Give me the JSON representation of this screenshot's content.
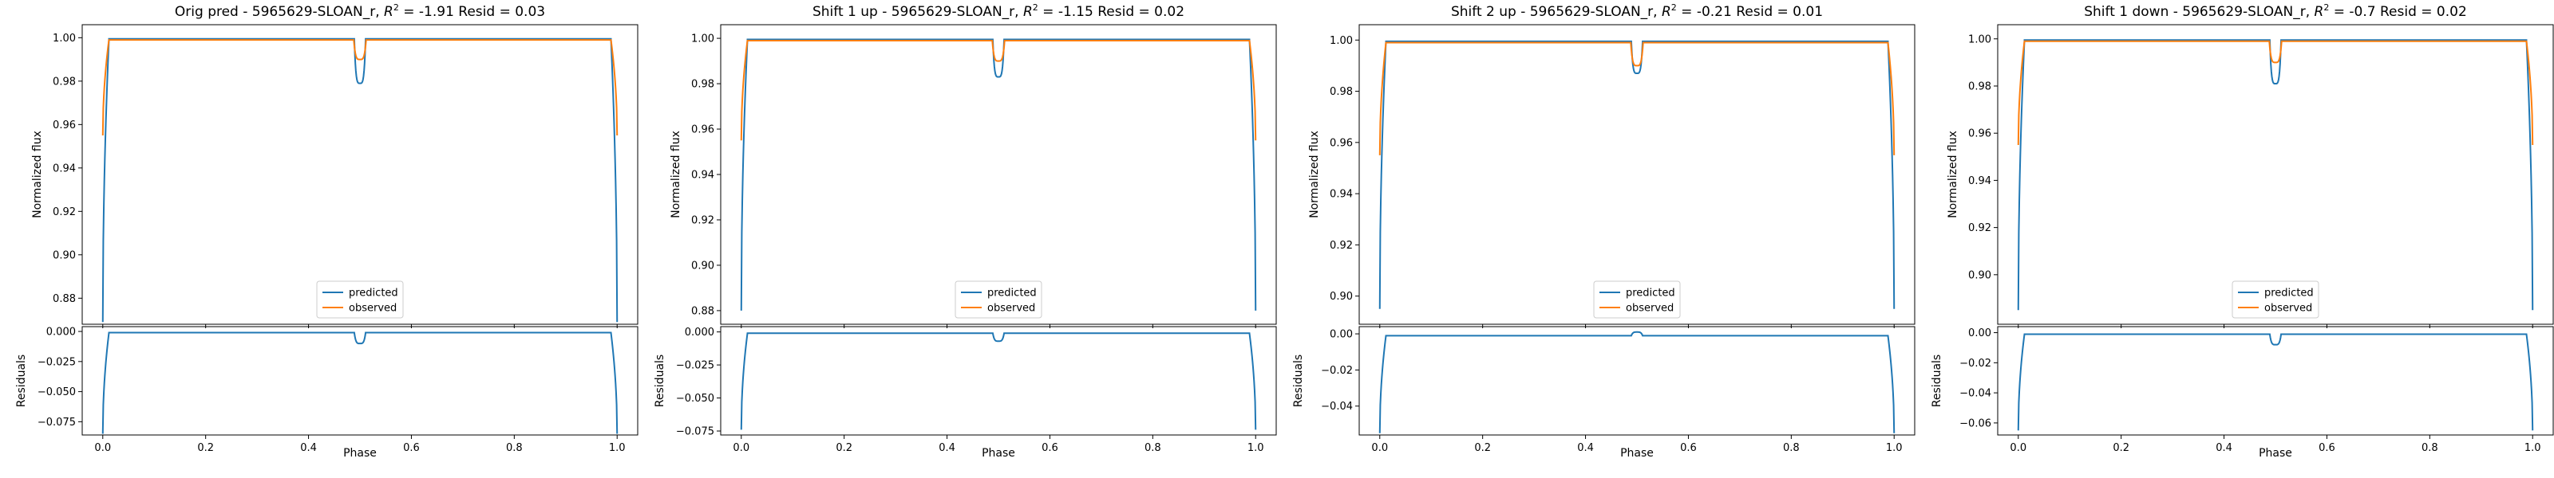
{
  "chart_data": [
    {
      "type": "line",
      "title": "Orig pred - 5965629-SLOAN_r, $R^2$ = -1.91 Resid = 0.03",
      "title_plain": "Orig pred - 5965629-SLOAN_r, ",
      "title_r2_value": "-1.91",
      "title_resid": "Resid = 0.03",
      "xlabel": "Phase",
      "ylabel": "Normalized flux",
      "resid_ylabel": "Residuals",
      "xlim": [
        -0.04,
        1.04
      ],
      "ylim": [
        0.868,
        1.006
      ],
      "yticks": [
        0.88,
        0.9,
        0.92,
        0.94,
        0.96,
        0.98,
        1.0
      ],
      "ytick_labels": [
        "0.88",
        "0.90",
        "0.92",
        "0.94",
        "0.96",
        "0.98",
        "1.00"
      ],
      "xticks": [
        0.0,
        0.2,
        0.4,
        0.6,
        0.8,
        1.0
      ],
      "xtick_labels": [
        "0.0",
        "0.2",
        "0.4",
        "0.6",
        "0.8",
        "1.0"
      ],
      "resid_ylim": [
        -0.086,
        0.004
      ],
      "resid_yticks": [
        0.0,
        -0.025,
        -0.05,
        -0.075
      ],
      "resid_ytick_labels": [
        "0.000",
        "−0.025",
        "−0.050",
        "−0.075"
      ],
      "legend_position": "lower center",
      "series": [
        {
          "name": "predicted",
          "color": "#1f77b4",
          "edge_min": 0.869,
          "plateau": 0.9995,
          "dip_min": 0.979
        },
        {
          "name": "observed",
          "color": "#ff7f0e",
          "edge_min": 0.955,
          "plateau": 0.999,
          "dip_min": 0.99
        }
      ],
      "residuals": {
        "color": "#1f77b4",
        "edge_min": -0.085,
        "plateau": -0.001,
        "dip_min": -0.01
      }
    },
    {
      "type": "line",
      "title": "Shift 1 up - 5965629-SLOAN_r, $R^2$ = -1.15 Resid = 0.02",
      "title_plain": "Shift 1 up - 5965629-SLOAN_r, ",
      "title_r2_value": "-1.15",
      "title_resid": "Resid = 0.02",
      "xlabel": "Phase",
      "ylabel": "Normalized flux",
      "resid_ylabel": "Residuals",
      "xlim": [
        -0.04,
        1.04
      ],
      "ylim": [
        0.874,
        1.006
      ],
      "yticks": [
        0.88,
        0.9,
        0.92,
        0.94,
        0.96,
        0.98,
        1.0
      ],
      "ytick_labels": [
        "0.88",
        "0.90",
        "0.92",
        "0.94",
        "0.96",
        "0.98",
        "1.00"
      ],
      "xticks": [
        0.0,
        0.2,
        0.4,
        0.6,
        0.8,
        1.0
      ],
      "xtick_labels": [
        "0.0",
        "0.2",
        "0.4",
        "0.6",
        "0.8",
        "1.0"
      ],
      "resid_ylim": [
        -0.078,
        0.004
      ],
      "resid_yticks": [
        0.0,
        -0.025,
        -0.05,
        -0.075
      ],
      "resid_ytick_labels": [
        "0.000",
        "−0.025",
        "−0.050",
        "−0.075"
      ],
      "legend_position": "lower center",
      "series": [
        {
          "name": "predicted",
          "color": "#1f77b4",
          "edge_min": 0.88,
          "plateau": 0.9995,
          "dip_min": 0.983
        },
        {
          "name": "observed",
          "color": "#ff7f0e",
          "edge_min": 0.955,
          "plateau": 0.999,
          "dip_min": 0.99
        }
      ],
      "residuals": {
        "color": "#1f77b4",
        "edge_min": -0.074,
        "plateau": -0.001,
        "dip_min": -0.007
      }
    },
    {
      "type": "line",
      "title": "Shift 2 up - 5965629-SLOAN_r, $R^2$ = -0.21 Resid = 0.01",
      "title_plain": "Shift 2 up - 5965629-SLOAN_r, ",
      "title_r2_value": "-0.21",
      "title_resid": "Resid = 0.01",
      "xlabel": "Phase",
      "ylabel": "Normalized flux",
      "resid_ylabel": "Residuals",
      "xlim": [
        -0.04,
        1.04
      ],
      "ylim": [
        0.889,
        1.006
      ],
      "yticks": [
        0.9,
        0.92,
        0.94,
        0.96,
        0.98,
        1.0
      ],
      "ytick_labels": [
        "0.90",
        "0.92",
        "0.94",
        "0.96",
        "0.98",
        "1.00"
      ],
      "xticks": [
        0.0,
        0.2,
        0.4,
        0.6,
        0.8,
        1.0
      ],
      "xtick_labels": [
        "0.0",
        "0.2",
        "0.4",
        "0.6",
        "0.8",
        "1.0"
      ],
      "resid_ylim": [
        -0.056,
        0.004
      ],
      "resid_yticks": [
        0.0,
        -0.02,
        -0.04
      ],
      "resid_ytick_labels": [
        "0.00",
        "−0.02",
        "−0.04"
      ],
      "legend_position": "lower center",
      "series": [
        {
          "name": "predicted",
          "color": "#1f77b4",
          "edge_min": 0.895,
          "plateau": 0.9995,
          "dip_min": 0.987
        },
        {
          "name": "observed",
          "color": "#ff7f0e",
          "edge_min": 0.955,
          "plateau": 0.999,
          "dip_min": 0.99
        }
      ],
      "residuals": {
        "color": "#1f77b4",
        "edge_min": -0.055,
        "plateau": -0.001,
        "dip_min": 0.001
      }
    },
    {
      "type": "line",
      "title": "Shift 1 down - 5965629-SLOAN_r, $R^2$ = -0.7 Resid = 0.02",
      "title_plain": "Shift 1 down - 5965629-SLOAN_r, ",
      "title_r2_value": "-0.7",
      "title_resid": "Resid = 0.02",
      "xlabel": "Phase",
      "ylabel": "Normalized flux",
      "resid_ylabel": "Residuals",
      "xlim": [
        -0.04,
        1.04
      ],
      "ylim": [
        0.879,
        1.006
      ],
      "yticks": [
        0.9,
        0.92,
        0.94,
        0.96,
        0.98,
        1.0
      ],
      "ytick_labels": [
        "0.90",
        "0.92",
        "0.94",
        "0.96",
        "0.98",
        "1.00"
      ],
      "xticks": [
        0.0,
        0.2,
        0.4,
        0.6,
        0.8,
        1.0
      ],
      "xtick_labels": [
        "0.0",
        "0.2",
        "0.4",
        "0.6",
        "0.8",
        "1.0"
      ],
      "resid_ylim": [
        -0.068,
        0.004
      ],
      "resid_yticks": [
        0.0,
        -0.02,
        -0.04,
        -0.06
      ],
      "resid_ytick_labels": [
        "0.00",
        "−0.02",
        "−0.04",
        "−0.06"
      ],
      "legend_position": "lower center",
      "series": [
        {
          "name": "predicted",
          "color": "#1f77b4",
          "edge_min": 0.885,
          "plateau": 0.9995,
          "dip_min": 0.981
        },
        {
          "name": "observed",
          "color": "#ff7f0e",
          "edge_min": 0.955,
          "plateau": 0.999,
          "dip_min": 0.99
        }
      ],
      "residuals": {
        "color": "#1f77b4",
        "edge_min": -0.065,
        "plateau": -0.001,
        "dip_min": -0.008
      }
    }
  ]
}
